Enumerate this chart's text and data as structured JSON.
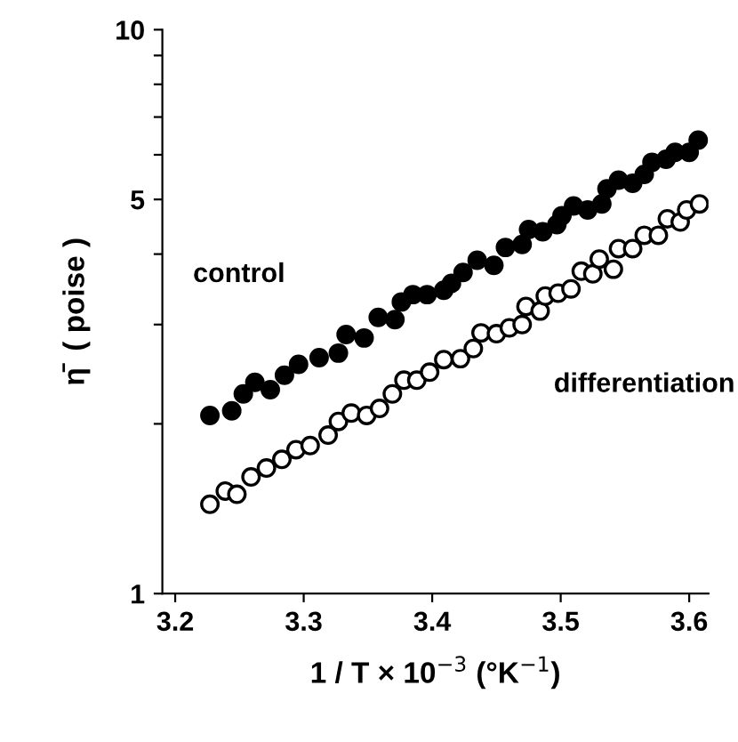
{
  "chart_data": {
    "type": "scatter",
    "xlabel": "1 / T × 10$^{−3}$ (°K$^{−1}$)",
    "ylabel": "η̄  ( poise )",
    "log": "y",
    "xlim": [
      3.19,
      3.615
    ],
    "ylim": [
      1,
      10
    ],
    "xticks": [
      3.2,
      3.3,
      3.4,
      3.5,
      3.6
    ],
    "yticks": [
      1,
      {
        "value": 2,
        "label": null
      },
      {
        "value": 3,
        "label": null
      },
      {
        "value": 4,
        "label": null
      },
      5,
      {
        "value": 6,
        "label": null
      },
      {
        "value": 7,
        "label": null
      },
      {
        "value": 8,
        "label": null
      },
      {
        "value": 9,
        "label": null
      },
      10
    ],
    "grid": false,
    "legend": false,
    "marker": "circle",
    "series": [
      {
        "name": "control",
        "color": "#000000",
        "x": [
          3.227,
          3.244,
          3.253,
          3.262,
          3.274,
          3.285,
          3.296,
          3.312,
          3.327,
          3.333,
          3.347,
          3.358,
          3.371,
          3.376,
          3.385,
          3.396,
          3.409,
          3.415,
          3.424,
          3.435,
          3.448,
          3.457,
          3.47,
          3.475,
          3.486,
          3.497,
          3.501,
          3.51,
          3.521,
          3.532,
          3.536,
          3.545,
          3.556,
          3.565,
          3.571,
          3.582,
          3.589,
          3.6,
          3.607
        ],
        "values": [
          2.07,
          2.11,
          2.26,
          2.37,
          2.3,
          2.44,
          2.55,
          2.62,
          2.67,
          2.88,
          2.84,
          3.09,
          3.06,
          3.29,
          3.39,
          3.39,
          3.45,
          3.55,
          3.71,
          3.9,
          3.82,
          4.11,
          4.16,
          4.42,
          4.38,
          4.51,
          4.68,
          4.87,
          4.79,
          4.91,
          5.22,
          5.41,
          5.34,
          5.54,
          5.82,
          5.89,
          6.06,
          6.06,
          6.37
        ]
      },
      {
        "name": "differentiation",
        "color": "#ffffff",
        "x": [
          3.227,
          3.239,
          3.248,
          3.259,
          3.271,
          3.283,
          3.294,
          3.305,
          3.319,
          3.327,
          3.337,
          3.349,
          3.359,
          3.369,
          3.378,
          3.388,
          3.398,
          3.409,
          3.422,
          3.432,
          3.438,
          3.45,
          3.46,
          3.47,
          3.473,
          3.484,
          3.488,
          3.498,
          3.508,
          3.516,
          3.525,
          3.53,
          3.541,
          3.545,
          3.556,
          3.565,
          3.576,
          3.583,
          3.593,
          3.598,
          3.608
        ],
        "values": [
          1.44,
          1.52,
          1.5,
          1.61,
          1.67,
          1.73,
          1.8,
          1.83,
          1.91,
          2.02,
          2.09,
          2.07,
          2.13,
          2.26,
          2.39,
          2.39,
          2.47,
          2.6,
          2.61,
          2.72,
          2.9,
          2.89,
          2.96,
          3.0,
          3.23,
          3.17,
          3.37,
          3.41,
          3.47,
          3.73,
          3.69,
          3.92,
          3.76,
          4.09,
          4.09,
          4.32,
          4.32,
          4.62,
          4.56,
          4.79,
          4.91
        ]
      }
    ]
  }
}
